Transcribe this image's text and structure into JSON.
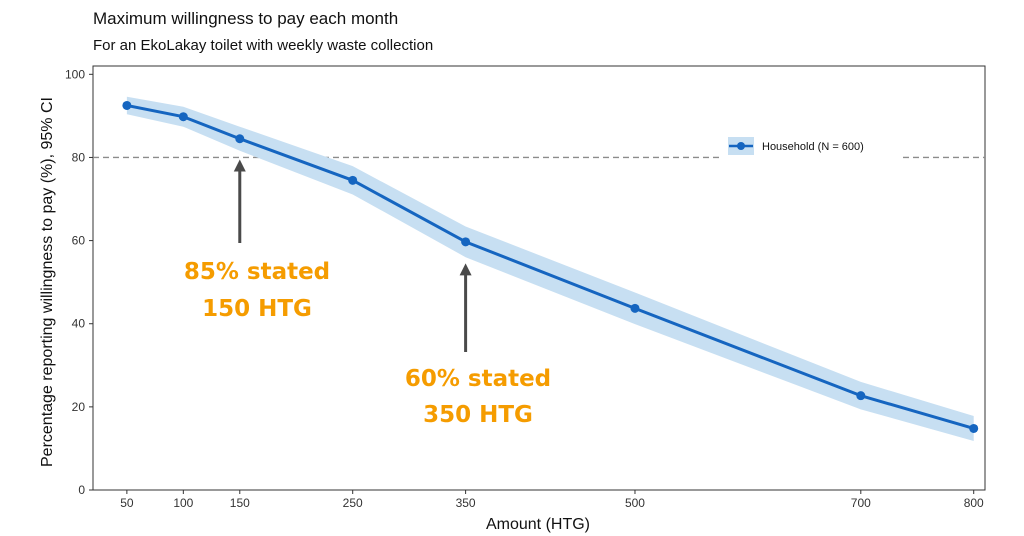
{
  "chart_data": {
    "type": "line",
    "title": "Maximum willingness to pay each month",
    "subtitle": "For an EkoLakay toilet with weekly waste collection",
    "xlabel": "Amount (HTG)",
    "ylabel": "Percentage reporting willingness to pay (%), 95% CI",
    "xlim": [
      20,
      810
    ],
    "ylim": [
      0,
      102
    ],
    "x_ticks": [
      50,
      100,
      150,
      250,
      350,
      500,
      700,
      800
    ],
    "y_ticks": [
      0,
      20,
      40,
      60,
      80,
      100
    ],
    "series": [
      {
        "name": "Household (N = 600)",
        "x": [
          50,
          100,
          150,
          250,
          350,
          500,
          700,
          800
        ],
        "values": [
          92.5,
          89.8,
          84.5,
          74.5,
          59.7,
          43.7,
          22.7,
          14.8
        ],
        "ci_upper": [
          94.6,
          92.2,
          87.4,
          77.9,
          63.4,
          47.5,
          26.0,
          17.8
        ],
        "ci_lower": [
          90.4,
          87.4,
          81.6,
          71.1,
          56.0,
          39.9,
          19.4,
          11.8
        ],
        "color": "#1565c0",
        "band_color": "#c7dff2"
      }
    ],
    "reference_line": {
      "y": 80,
      "style": "dashed",
      "color": "#8c8c8c"
    },
    "legend": {
      "position": "top-right",
      "entries": [
        "Household (N = 600)"
      ]
    },
    "annotations": [
      {
        "line1": "85% stated",
        "line2": "150 HTG",
        "arrow_x": 150,
        "arrow_to_y": 80,
        "color": "#f59c00"
      },
      {
        "line1": "60% stated",
        "line2": "350 HTG",
        "arrow_x": 350,
        "arrow_to_y": 55,
        "color": "#f59c00"
      }
    ]
  }
}
